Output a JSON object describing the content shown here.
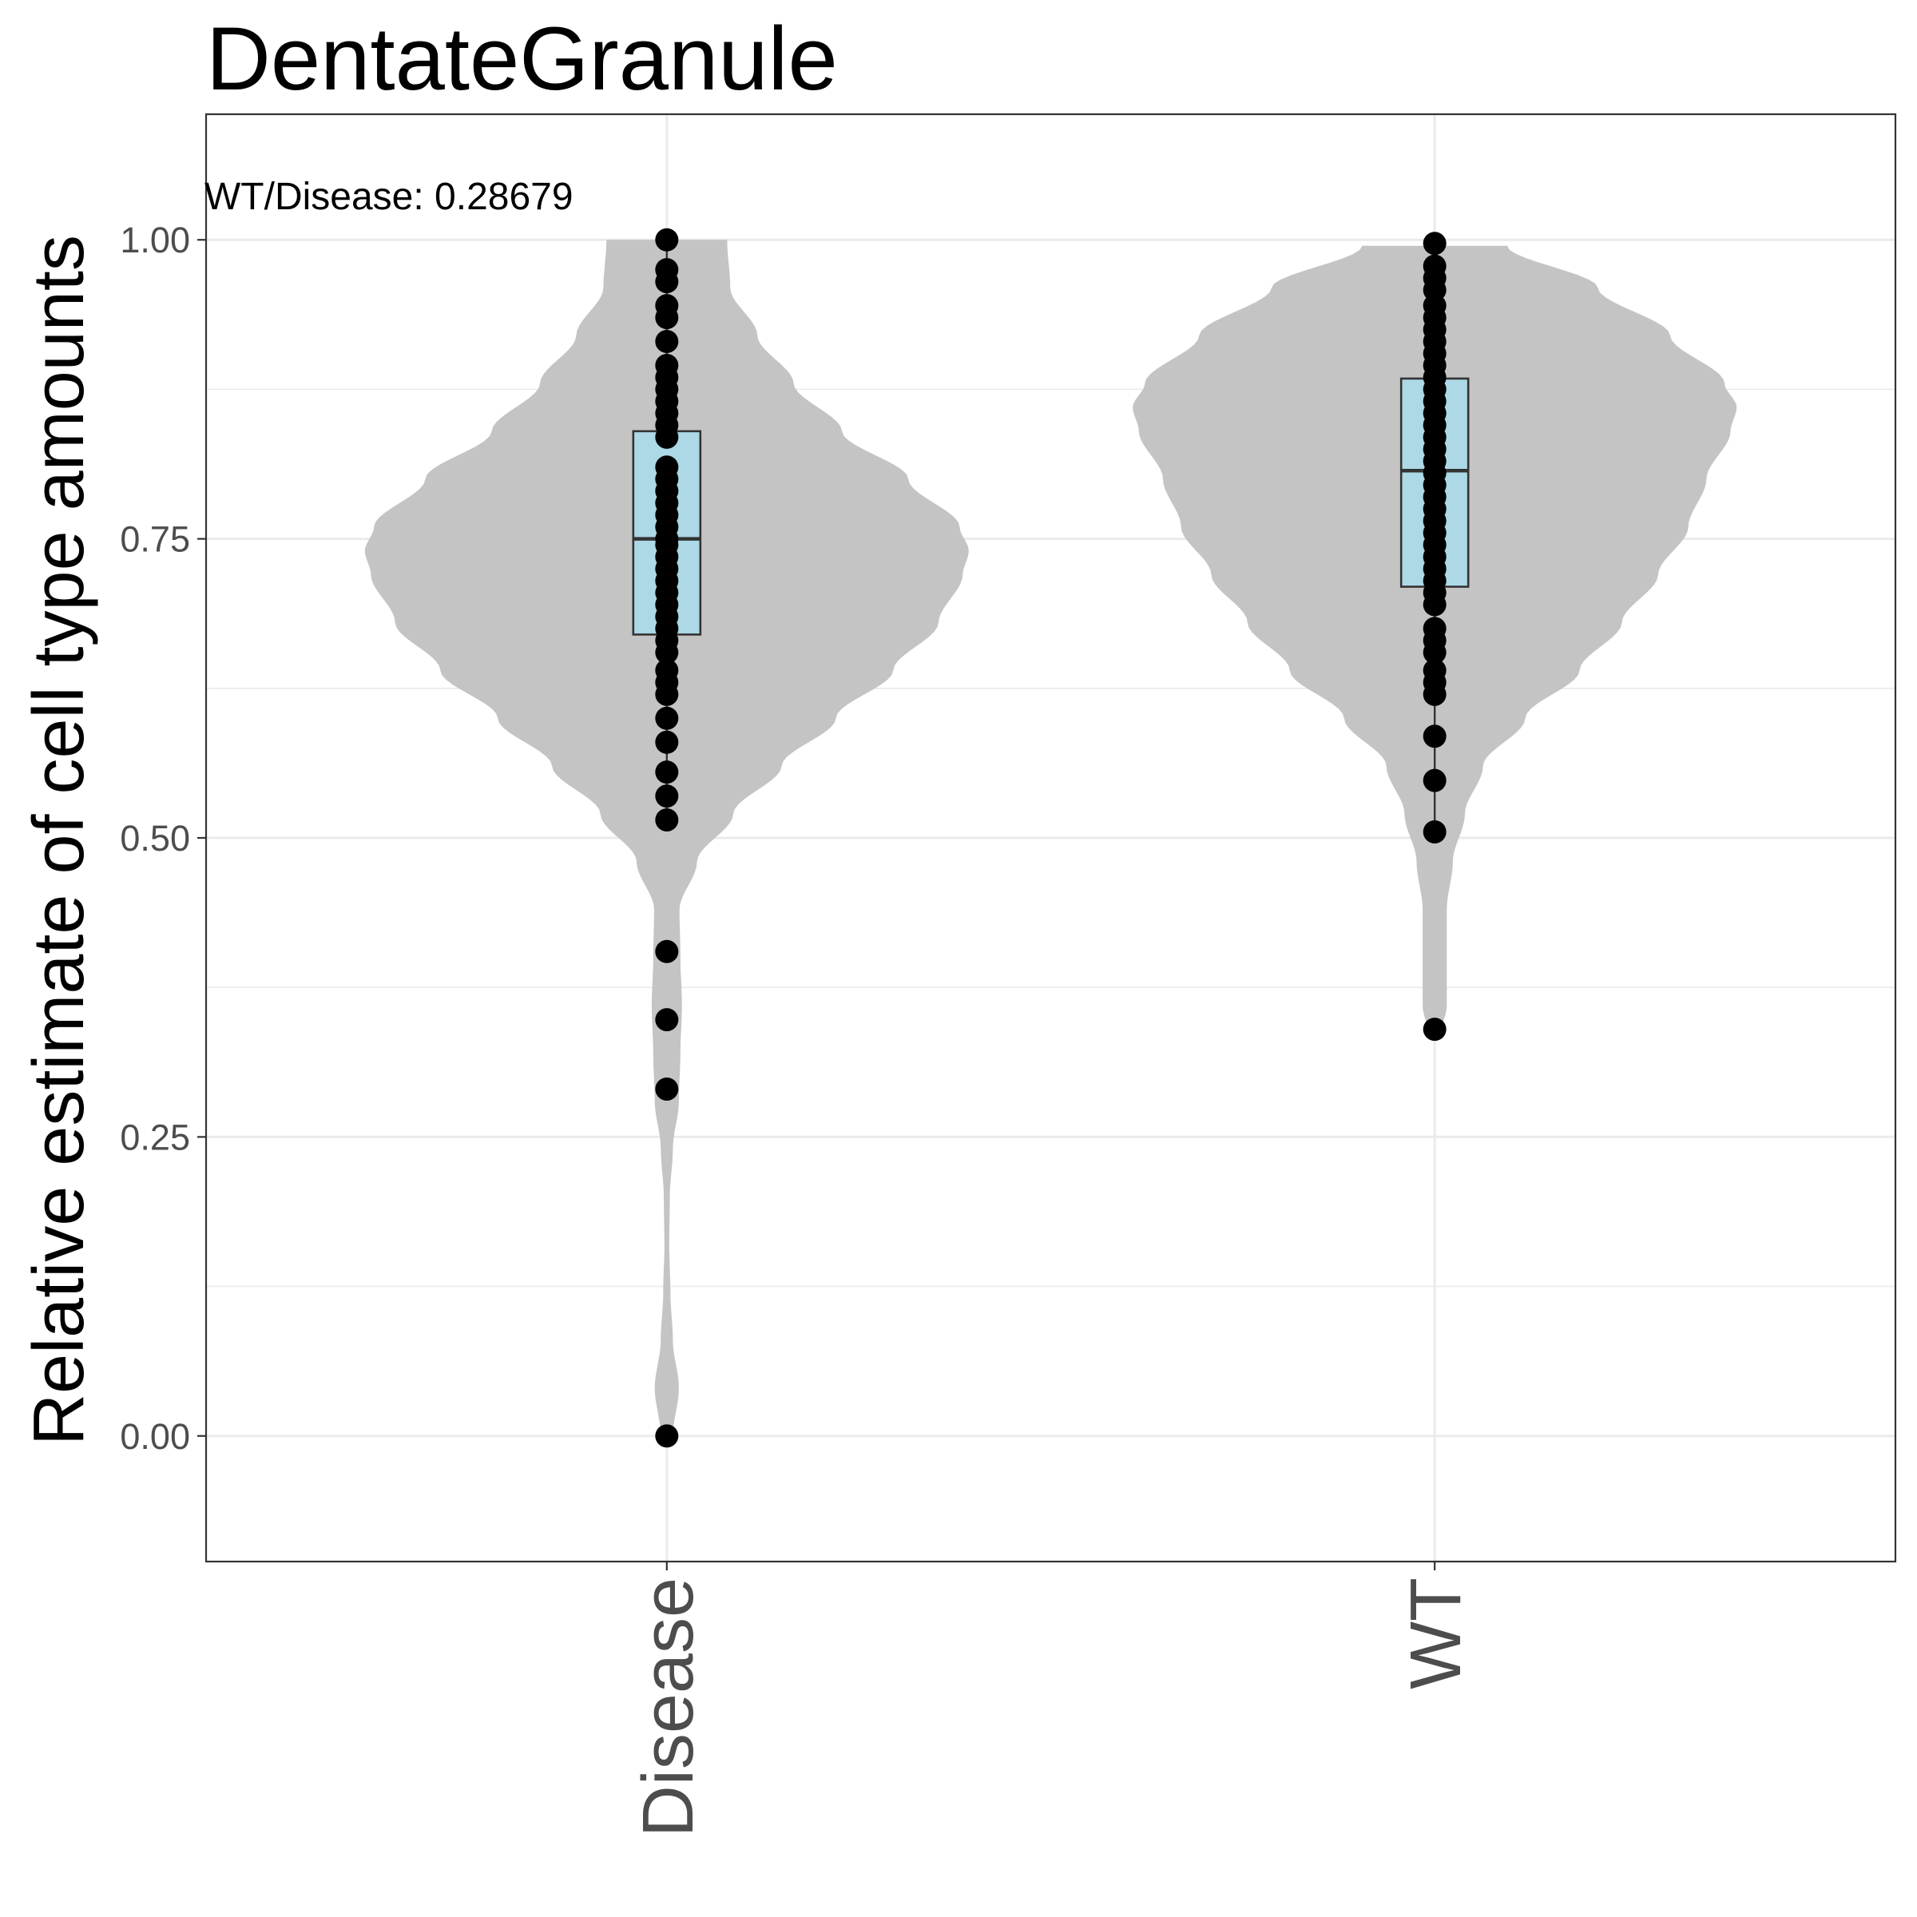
{
  "chart_data": {
    "type": "violin",
    "title": "DentateGranule",
    "xlabel": "",
    "ylabel": "Relative estimate of cell type amounts",
    "annotation": "WT/Disease: 0.28679",
    "categories": [
      "Disease",
      "WT"
    ],
    "ylim": [
      -0.105,
      1.105
    ],
    "yticks": [
      "0.00",
      "0.25",
      "0.50",
      "0.75",
      "1.00"
    ],
    "grid": true,
    "colors": {
      "violin": "#c4c4c4",
      "box": "#add8e6",
      "point": "#000000",
      "panel_border": "#333333"
    },
    "groups": [
      {
        "name": "Disease",
        "box": {
          "q1": 0.67,
          "median": 0.75,
          "q3": 0.84,
          "whisker_low": 0.515,
          "whisker_high": 1.0
        },
        "points": [
          1.0,
          0.975,
          0.965,
          0.945,
          0.935,
          0.915,
          0.895,
          0.885,
          0.875,
          0.865,
          0.855,
          0.845,
          0.835,
          0.81,
          0.8,
          0.79,
          0.78,
          0.77,
          0.76,
          0.75,
          0.745,
          0.735,
          0.725,
          0.715,
          0.705,
          0.695,
          0.685,
          0.675,
          0.665,
          0.655,
          0.64,
          0.63,
          0.62,
          0.6,
          0.58,
          0.555,
          0.535,
          0.515,
          0.405,
          0.348,
          0.29,
          0.0
        ],
        "violin_density": [
          [
            0.0,
            0.02
          ],
          [
            0.04,
            0.04
          ],
          [
            0.08,
            0.02
          ],
          [
            0.12,
            0.012
          ],
          [
            0.16,
            0.008
          ],
          [
            0.2,
            0.01
          ],
          [
            0.24,
            0.02
          ],
          [
            0.28,
            0.04
          ],
          [
            0.32,
            0.045
          ],
          [
            0.36,
            0.05
          ],
          [
            0.4,
            0.045
          ],
          [
            0.44,
            0.042
          ],
          [
            0.48,
            0.1
          ],
          [
            0.52,
            0.22
          ],
          [
            0.56,
            0.38
          ],
          [
            0.6,
            0.56
          ],
          [
            0.64,
            0.75
          ],
          [
            0.68,
            0.9
          ],
          [
            0.72,
            0.98
          ],
          [
            0.74,
            1.0
          ],
          [
            0.76,
            0.97
          ],
          [
            0.8,
            0.8
          ],
          [
            0.84,
            0.58
          ],
          [
            0.88,
            0.42
          ],
          [
            0.92,
            0.3
          ],
          [
            0.96,
            0.21
          ],
          [
            1.0,
            0.2
          ]
        ]
      },
      {
        "name": "WT",
        "box": {
          "q1": 0.71,
          "median": 0.807,
          "q3": 0.884,
          "whisker_low": 0.505,
          "whisker_high": 0.995
        },
        "points": [
          0.997,
          0.978,
          0.968,
          0.958,
          0.945,
          0.935,
          0.925,
          0.915,
          0.905,
          0.895,
          0.885,
          0.875,
          0.865,
          0.855,
          0.845,
          0.835,
          0.825,
          0.815,
          0.805,
          0.795,
          0.785,
          0.775,
          0.765,
          0.755,
          0.745,
          0.735,
          0.725,
          0.715,
          0.705,
          0.695,
          0.675,
          0.665,
          0.655,
          0.64,
          0.63,
          0.62,
          0.585,
          0.548,
          0.505,
          0.34
        ],
        "violin_density": [
          [
            0.335,
            0.02
          ],
          [
            0.36,
            0.04
          ],
          [
            0.4,
            0.04
          ],
          [
            0.44,
            0.04
          ],
          [
            0.48,
            0.06
          ],
          [
            0.52,
            0.1
          ],
          [
            0.56,
            0.16
          ],
          [
            0.6,
            0.3
          ],
          [
            0.64,
            0.48
          ],
          [
            0.68,
            0.62
          ],
          [
            0.72,
            0.74
          ],
          [
            0.76,
            0.84
          ],
          [
            0.8,
            0.9
          ],
          [
            0.84,
            0.98
          ],
          [
            0.86,
            1.0
          ],
          [
            0.88,
            0.96
          ],
          [
            0.92,
            0.78
          ],
          [
            0.96,
            0.54
          ],
          [
            0.995,
            0.24
          ]
        ]
      }
    ]
  }
}
